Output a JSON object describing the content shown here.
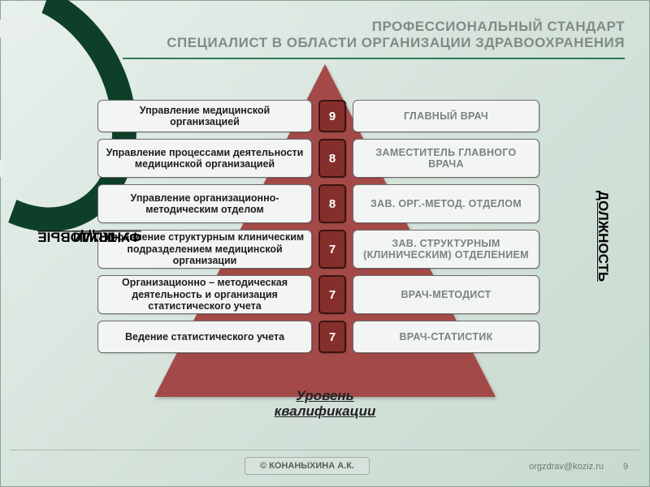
{
  "title": {
    "line1": "ПРОФЕССИОНАЛЬНЫЙ СТАНДАРТ",
    "line2": "СПЕЦИАЛИСТ В ОБЛАСТИ ОРГАНИЗАЦИИ ЗДРАВООХРАНЕНИЯ",
    "color": "#7f8c86",
    "rule_color": "#2e7a58"
  },
  "pyramid": {
    "triangle_color": "#a34a48",
    "level_box_color": "#852f2c",
    "cell_bg": "#f3f5f4",
    "cell_border": "#6b6b6b",
    "rows": [
      {
        "left": "Управление медицинской организацией",
        "level": "9",
        "right": "ГЛАВНЫЙ ВРАЧ"
      },
      {
        "left": "Управление процессами деятельности медицинской организацией",
        "level": "8",
        "right": "ЗАМЕСТИТЕЛЬ ГЛАВНОГО ВРАЧА"
      },
      {
        "left": "Управление организационно-методическим отделом",
        "level": "8",
        "right": "ЗАВ. ОРГ.-МЕТОД. ОТДЕЛОМ"
      },
      {
        "left": "Управление структурным клиническим подразделением медицинской организации",
        "level": "7",
        "right": "ЗАВ. СТРУКТУРНЫМ (КЛИНИЧЕСКИМ) ОТДЕЛЕНИЕМ"
      },
      {
        "left": "Организационно – методическая деятельность и организация статистического учета",
        "level": "7",
        "right": "ВРАЧ-МЕТОДИСТ"
      },
      {
        "left": "Ведение статистического учета",
        "level": "7",
        "right": "ВРАЧ-СТАТИСТИК"
      }
    ]
  },
  "side_labels": {
    "left_line1": "ТРУДОВЫЕ",
    "left_line2": "ФУНКЦИИ",
    "right": "ДОЛЖНОСТЬ"
  },
  "bottom_caption": {
    "line1": "Уровень",
    "line2": "квалификации"
  },
  "footer": {
    "copyright": "© КОНАНЫХИНА А.К.",
    "email": "orgzdrav@koziz.ru",
    "page": "9"
  },
  "palette": {
    "bg_from": "#e8f0ec",
    "bg_to": "#c8dad0",
    "swirl_dark": "#0e4029",
    "swirl_light": "#e9efeb"
  }
}
